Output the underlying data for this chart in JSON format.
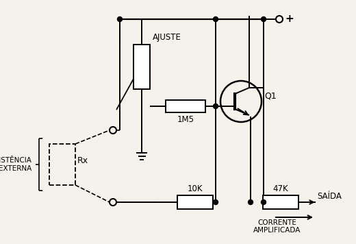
{
  "background_color": "#f5f2ec",
  "labels": {
    "ajuste": "AJUSTE",
    "resistor_1m5": "1M5",
    "transistor": "Q1",
    "resistor_10k": "10K",
    "resistor_47k": "47K",
    "rx": "Rx",
    "saida": "SAÍDA",
    "corrente": "CORRENTE",
    "amplificada": "AMPLIFICADA",
    "resistencia": "RESISTÊNCIA",
    "externa": "EXTERNA",
    "plus": "+"
  },
  "figsize": [
    5.2,
    3.56
  ],
  "dpi": 100
}
